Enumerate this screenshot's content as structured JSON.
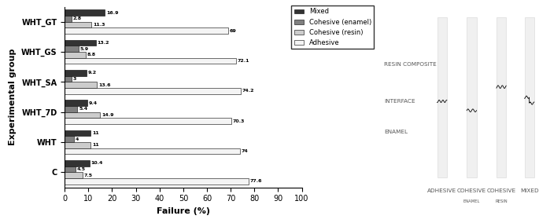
{
  "chart_data": {
    "type": "bar",
    "orientation": "horizontal",
    "x_label": "Failure (%)",
    "y_label": "Experimental group",
    "categories": [
      "WHT_GT",
      "WHT_GS",
      "WHT_SA",
      "WHT_7D",
      "WHT",
      "C"
    ],
    "series": [
      {
        "name": "Mixed",
        "color": "#333333",
        "values": [
          16.9,
          13.2,
          9.2,
          9.4,
          11,
          10.4
        ]
      },
      {
        "name": "Cohesive (enamel)",
        "color": "#808080",
        "values": [
          2.8,
          5.9,
          3,
          5.4,
          4,
          4.5
        ]
      },
      {
        "name": "Cohesive (resin)",
        "color": "#cccccc",
        "values": [
          11.3,
          8.8,
          13.6,
          14.9,
          11,
          7.5
        ]
      },
      {
        "name": "Adhesive",
        "color": "#f4f4f4",
        "values": [
          69,
          72.1,
          74.2,
          70.3,
          74,
          77.6
        ]
      }
    ],
    "xlim": [
      0,
      100
    ],
    "xticks": [
      0,
      10,
      20,
      30,
      40,
      50,
      60,
      70,
      80,
      90,
      100
    ],
    "data_labels": true,
    "legend": "upper right",
    "grid": false
  },
  "diagram": {
    "layers": [
      "RESIN COMPOSITE",
      "INTERFACE",
      "ENAMEL"
    ],
    "columns": [
      {
        "label": "ADHESIVE"
      },
      {
        "label": "COHESIVE",
        "sublabel": "ENAMEL"
      },
      {
        "label": "COHESIVE",
        "sublabel": "RESIN"
      },
      {
        "label": "MIXED"
      }
    ]
  }
}
